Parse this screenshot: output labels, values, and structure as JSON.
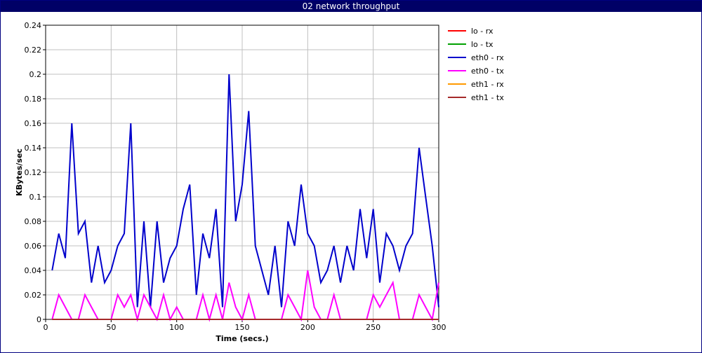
{
  "window": {
    "title": "02 network throughput"
  },
  "chart_data": {
    "type": "line",
    "title": "02 network throughput",
    "xlabel": "Time (secs.)",
    "ylabel": "KBytes/sec",
    "xlim": [
      0,
      300
    ],
    "ylim": [
      0,
      0.24
    ],
    "xticks": [
      0,
      50,
      100,
      150,
      200,
      250,
      300
    ],
    "xtick_labels": [
      "0",
      "50",
      "100",
      "150",
      "200",
      "250",
      "300"
    ],
    "yticks": [
      0,
      0.02,
      0.04,
      0.06,
      0.08,
      0.1,
      0.12,
      0.14,
      0.16,
      0.18,
      0.2,
      0.22,
      0.24
    ],
    "ytick_labels": [
      "0",
      "0.02",
      "0.04",
      "0.06",
      "0.08",
      "0.1",
      "0.12",
      "0.14",
      "0.16",
      "0.18",
      "0.2",
      "0.22",
      "0.24"
    ],
    "grid": true,
    "legend_position": "right",
    "x": [
      5,
      10,
      15,
      20,
      25,
      30,
      35,
      40,
      45,
      50,
      55,
      60,
      65,
      70,
      75,
      80,
      85,
      90,
      95,
      100,
      105,
      110,
      115,
      120,
      125,
      130,
      135,
      140,
      145,
      150,
      155,
      160,
      165,
      170,
      175,
      180,
      185,
      190,
      195,
      200,
      205,
      210,
      215,
      220,
      225,
      230,
      235,
      240,
      245,
      250,
      255,
      260,
      265,
      270,
      275,
      280,
      285,
      290,
      295,
      300
    ],
    "series": [
      {
        "name": "lo - rx",
        "color": "#ff0000",
        "values": [
          0,
          0,
          0,
          0,
          0,
          0,
          0,
          0,
          0,
          0,
          0,
          0,
          0,
          0,
          0,
          0,
          0,
          0,
          0,
          0,
          0,
          0,
          0,
          0,
          0,
          0,
          0,
          0,
          0,
          0,
          0,
          0,
          0,
          0,
          0,
          0,
          0,
          0,
          0,
          0,
          0,
          0,
          0,
          0,
          0,
          0,
          0,
          0,
          0,
          0,
          0,
          0,
          0,
          0,
          0,
          0,
          0,
          0,
          0,
          0
        ]
      },
      {
        "name": "lo - tx",
        "color": "#00a000",
        "values": [
          0,
          0,
          0,
          0,
          0,
          0,
          0,
          0,
          0,
          0,
          0,
          0,
          0,
          0,
          0,
          0,
          0,
          0,
          0,
          0,
          0,
          0,
          0,
          0,
          0,
          0,
          0,
          0,
          0,
          0,
          0,
          0,
          0,
          0,
          0,
          0,
          0,
          0,
          0,
          0,
          0,
          0,
          0,
          0,
          0,
          0,
          0,
          0,
          0,
          0,
          0,
          0,
          0,
          0,
          0,
          0,
          0,
          0,
          0,
          0
        ]
      },
      {
        "name": "eth0 - rx",
        "color": "#0000cc",
        "values": [
          0.04,
          0.07,
          0.05,
          0.16,
          0.07,
          0.08,
          0.03,
          0.06,
          0.03,
          0.04,
          0.06,
          0.07,
          0.16,
          0.01,
          0.08,
          0.01,
          0.08,
          0.03,
          0.05,
          0.06,
          0.09,
          0.11,
          0.02,
          0.07,
          0.05,
          0.09,
          0.01,
          0.2,
          0.08,
          0.11,
          0.17,
          0.06,
          0.04,
          0.02,
          0.06,
          0.01,
          0.08,
          0.06,
          0.11,
          0.07,
          0.06,
          0.03,
          0.04,
          0.06,
          0.03,
          0.06,
          0.04,
          0.09,
          0.05,
          0.09,
          0.03,
          0.07,
          0.06,
          0.04,
          0.06,
          0.07,
          0.14,
          0.1,
          0.06,
          0.01
        ]
      },
      {
        "name": "eth0 - tx",
        "color": "#ff00ff",
        "values": [
          0,
          0.02,
          0.01,
          0,
          0,
          0.02,
          0.01,
          0,
          0,
          0,
          0.02,
          0.01,
          0.02,
          0,
          0.02,
          0.01,
          0,
          0.02,
          0,
          0.01,
          0,
          0,
          0,
          0.02,
          0,
          0.02,
          0,
          0.03,
          0.01,
          0,
          0.02,
          0,
          0,
          0,
          0,
          0,
          0.02,
          0.01,
          0,
          0.04,
          0.01,
          0,
          0,
          0.02,
          0,
          0,
          0,
          0,
          0,
          0.02,
          0.01,
          0.02,
          0.03,
          0,
          0,
          0,
          0.02,
          0.01,
          0,
          0.03
        ]
      },
      {
        "name": "eth1 - rx",
        "color": "#ff9900",
        "values": [
          0,
          0,
          0,
          0,
          0,
          0,
          0,
          0,
          0,
          0,
          0,
          0,
          0,
          0,
          0,
          0,
          0,
          0,
          0,
          0,
          0,
          0,
          0,
          0,
          0,
          0,
          0,
          0,
          0,
          0,
          0,
          0,
          0,
          0,
          0,
          0,
          0,
          0,
          0,
          0,
          0,
          0,
          0,
          0,
          0,
          0,
          0,
          0,
          0,
          0,
          0,
          0,
          0,
          0,
          0,
          0,
          0,
          0,
          0,
          0
        ]
      },
      {
        "name": "eth1 - tx",
        "color": "#a52a2a",
        "values": [
          0,
          0,
          0,
          0,
          0,
          0,
          0,
          0,
          0,
          0,
          0,
          0,
          0,
          0,
          0,
          0,
          0,
          0,
          0,
          0,
          0,
          0,
          0,
          0,
          0,
          0,
          0,
          0,
          0,
          0,
          0,
          0,
          0,
          0,
          0,
          0,
          0,
          0,
          0,
          0,
          0,
          0,
          0,
          0,
          0,
          0,
          0,
          0,
          0,
          0,
          0,
          0,
          0,
          0,
          0,
          0,
          0,
          0,
          0,
          0
        ]
      }
    ]
  }
}
